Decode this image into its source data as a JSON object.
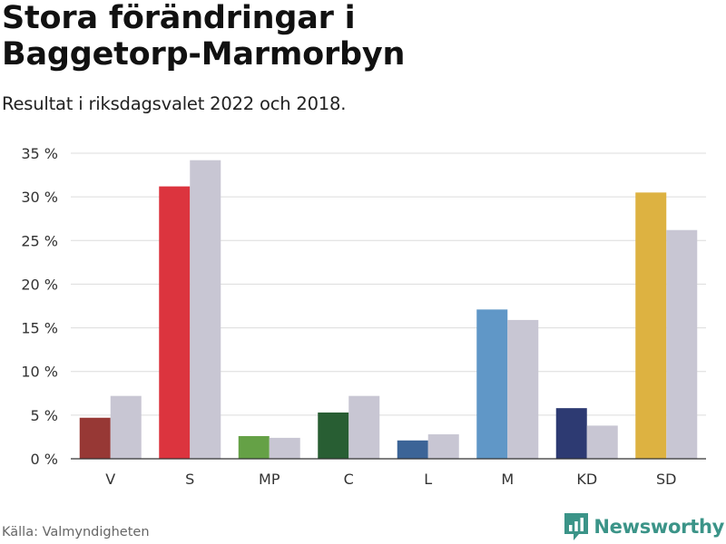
{
  "title_lines": [
    "Stora förändringar i",
    "Baggetorp-Marmorbyn"
  ],
  "subtitle": "Resultat i riksdagsvalet 2022 och 2018.",
  "source": "Källa: Valmyndigheten",
  "brand": {
    "name": "Newsworthy",
    "icon": "newsworthy-logo-icon",
    "color": "#3b9488"
  },
  "chart_data": {
    "type": "bar",
    "title": "Stora förändringar i Baggetorp-Marmorbyn",
    "subtitle": "Resultat i riksdagsvalet 2022 och 2018.",
    "categories": [
      "V",
      "S",
      "MP",
      "C",
      "L",
      "M",
      "KD",
      "SD"
    ],
    "series": [
      {
        "values": [
          4.7,
          31.2,
          2.6,
          5.3,
          2.1,
          17.1,
          5.8,
          30.5
        ],
        "colors": [
          "#973835",
          "#dc343e",
          "#65a146",
          "#285e33",
          "#3c6497",
          "#6097c7",
          "#2d3a72",
          "#ddb241"
        ]
      },
      {
        "values": [
          7.2,
          34.2,
          2.4,
          7.2,
          2.8,
          15.9,
          3.8,
          26.2
        ],
        "color": "#c8c6d3"
      }
    ],
    "ylim": [
      0,
      35
    ],
    "yticks": [
      0,
      5,
      10,
      15,
      20,
      25,
      30,
      35
    ],
    "ytick_labels": [
      "0 %",
      "5 %",
      "10 %",
      "15 %",
      "20 %",
      "25 %",
      "30 %",
      "35 %"
    ],
    "xlabel": "",
    "ylabel": "",
    "grid": true,
    "legend": "none"
  }
}
